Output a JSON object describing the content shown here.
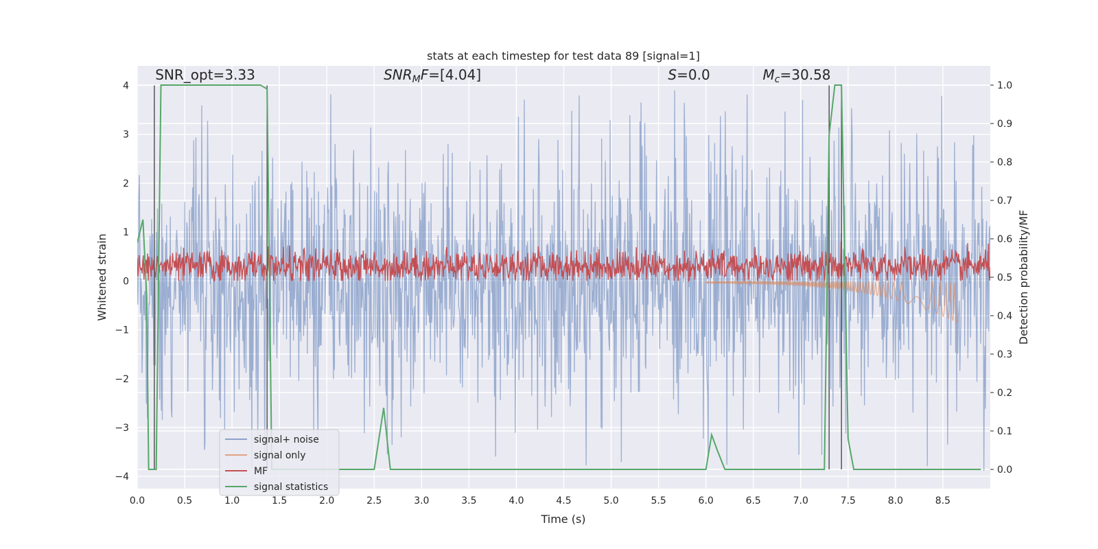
{
  "chart_data": {
    "type": "line",
    "title": "stats at each timestep for test data 89 [signal=1]",
    "xlabel": "Time (s)",
    "ylabel": "Whitened strain",
    "ylabel_right": "Detection probability/MF",
    "xlim": [
      0,
      9
    ],
    "ylim": [
      -4.25,
      4.4
    ],
    "ylim_right": [
      -0.05,
      1.05
    ],
    "x_ticks": [
      0.0,
      0.5,
      1.0,
      1.5,
      2.0,
      2.5,
      3.0,
      3.5,
      4.0,
      4.5,
      5.0,
      5.5,
      6.0,
      6.5,
      7.0,
      7.5,
      8.0,
      8.5
    ],
    "x_tick_labels": [
      "0.0",
      "0.5",
      "1.0",
      "1.5",
      "2.0",
      "2.5",
      "3.0",
      "3.5",
      "4.0",
      "4.5",
      "5.0",
      "5.5",
      "6.0",
      "6.5",
      "7.0",
      "7.5",
      "8.0",
      "8.5"
    ],
    "y_ticks": [
      -4,
      -3,
      -2,
      -1,
      0,
      1,
      2,
      3,
      4
    ],
    "y_tick_labels": [
      "−4",
      "−3",
      "−2",
      "−1",
      "0",
      "1",
      "2",
      "3",
      "4"
    ],
    "y_right_ticks": [
      0.0,
      0.1,
      0.2,
      0.3,
      0.4,
      0.5,
      0.6,
      0.7,
      0.8,
      0.9,
      1.0
    ],
    "y_right_tick_labels": [
      "0.0",
      "0.1",
      "0.2",
      "0.3",
      "0.4",
      "0.5",
      "0.6",
      "0.7",
      "0.8",
      "0.9",
      "1.0"
    ],
    "grid": true,
    "legend_position": "lower-left",
    "annotations": [
      {
        "text": "SNR_opt=3.33",
        "x": 0.19,
        "y": 4.12
      },
      {
        "text": "SNR_MF=[4.04]",
        "x": 2.6,
        "y": 4.12
      },
      {
        "text": "S=0.0",
        "x": 5.6,
        "y": 4.12
      },
      {
        "text": "M_c=30.58",
        "x": 6.6,
        "y": 4.12
      }
    ],
    "vertical_lines": [
      0.18,
      1.37,
      7.3,
      7.43
    ],
    "series": [
      {
        "name": "signal+ noise",
        "color": "#4c72b0",
        "axis": "left",
        "style": "noise",
        "spread": 1.45,
        "peak_max": 3.9
      },
      {
        "name": "signal only",
        "color": "#dd8452",
        "axis": "left",
        "style": "chirp",
        "start": 6.0,
        "end": 8.65,
        "amp_end": 0.8
      },
      {
        "name": "MF",
        "color": "#c44e52",
        "axis": "left",
        "style": "mf",
        "center": 0.3,
        "spread": 0.33
      },
      {
        "name": "signal statistics",
        "color": "#55a868",
        "axis": "right",
        "x": [
          0.0,
          0.06,
          0.1,
          0.12,
          0.2,
          0.25,
          1.3,
          1.37,
          1.42,
          1.5,
          2.0,
          2.5,
          2.6,
          2.67,
          3.0,
          4.0,
          5.0,
          6.0,
          6.06,
          6.12,
          6.2,
          7.0,
          7.25,
          7.3,
          7.36,
          7.43,
          7.5,
          7.56,
          8.0,
          8.9
        ],
        "y": [
          0.59,
          0.65,
          0.45,
          0.0,
          0.0,
          1.0,
          1.0,
          0.99,
          0.0,
          0.0,
          0.0,
          0.0,
          0.16,
          0.0,
          0.0,
          0.0,
          0.0,
          0.0,
          0.09,
          0.05,
          0.0,
          0.0,
          0.0,
          0.87,
          1.0,
          1.0,
          0.08,
          0.0,
          0.0,
          0.0
        ]
      }
    ]
  }
}
